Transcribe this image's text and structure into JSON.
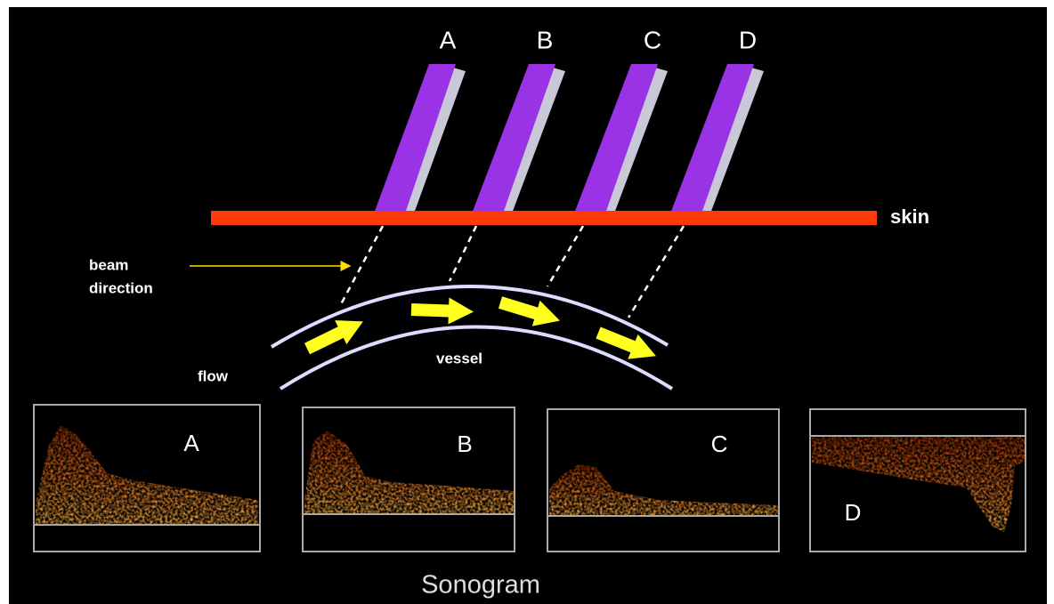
{
  "transducers": [
    {
      "label": "A"
    },
    {
      "label": "B"
    },
    {
      "label": "C"
    },
    {
      "label": "D"
    }
  ],
  "skin_label": "skin",
  "beam_label": [
    "beam",
    "direction"
  ],
  "vessel_label": "vessel",
  "flow_label": "flow",
  "sonograms": [
    {
      "label": "A"
    },
    {
      "label": "B"
    },
    {
      "label": "C"
    },
    {
      "label": "D"
    }
  ],
  "caption": "Sonogram"
}
